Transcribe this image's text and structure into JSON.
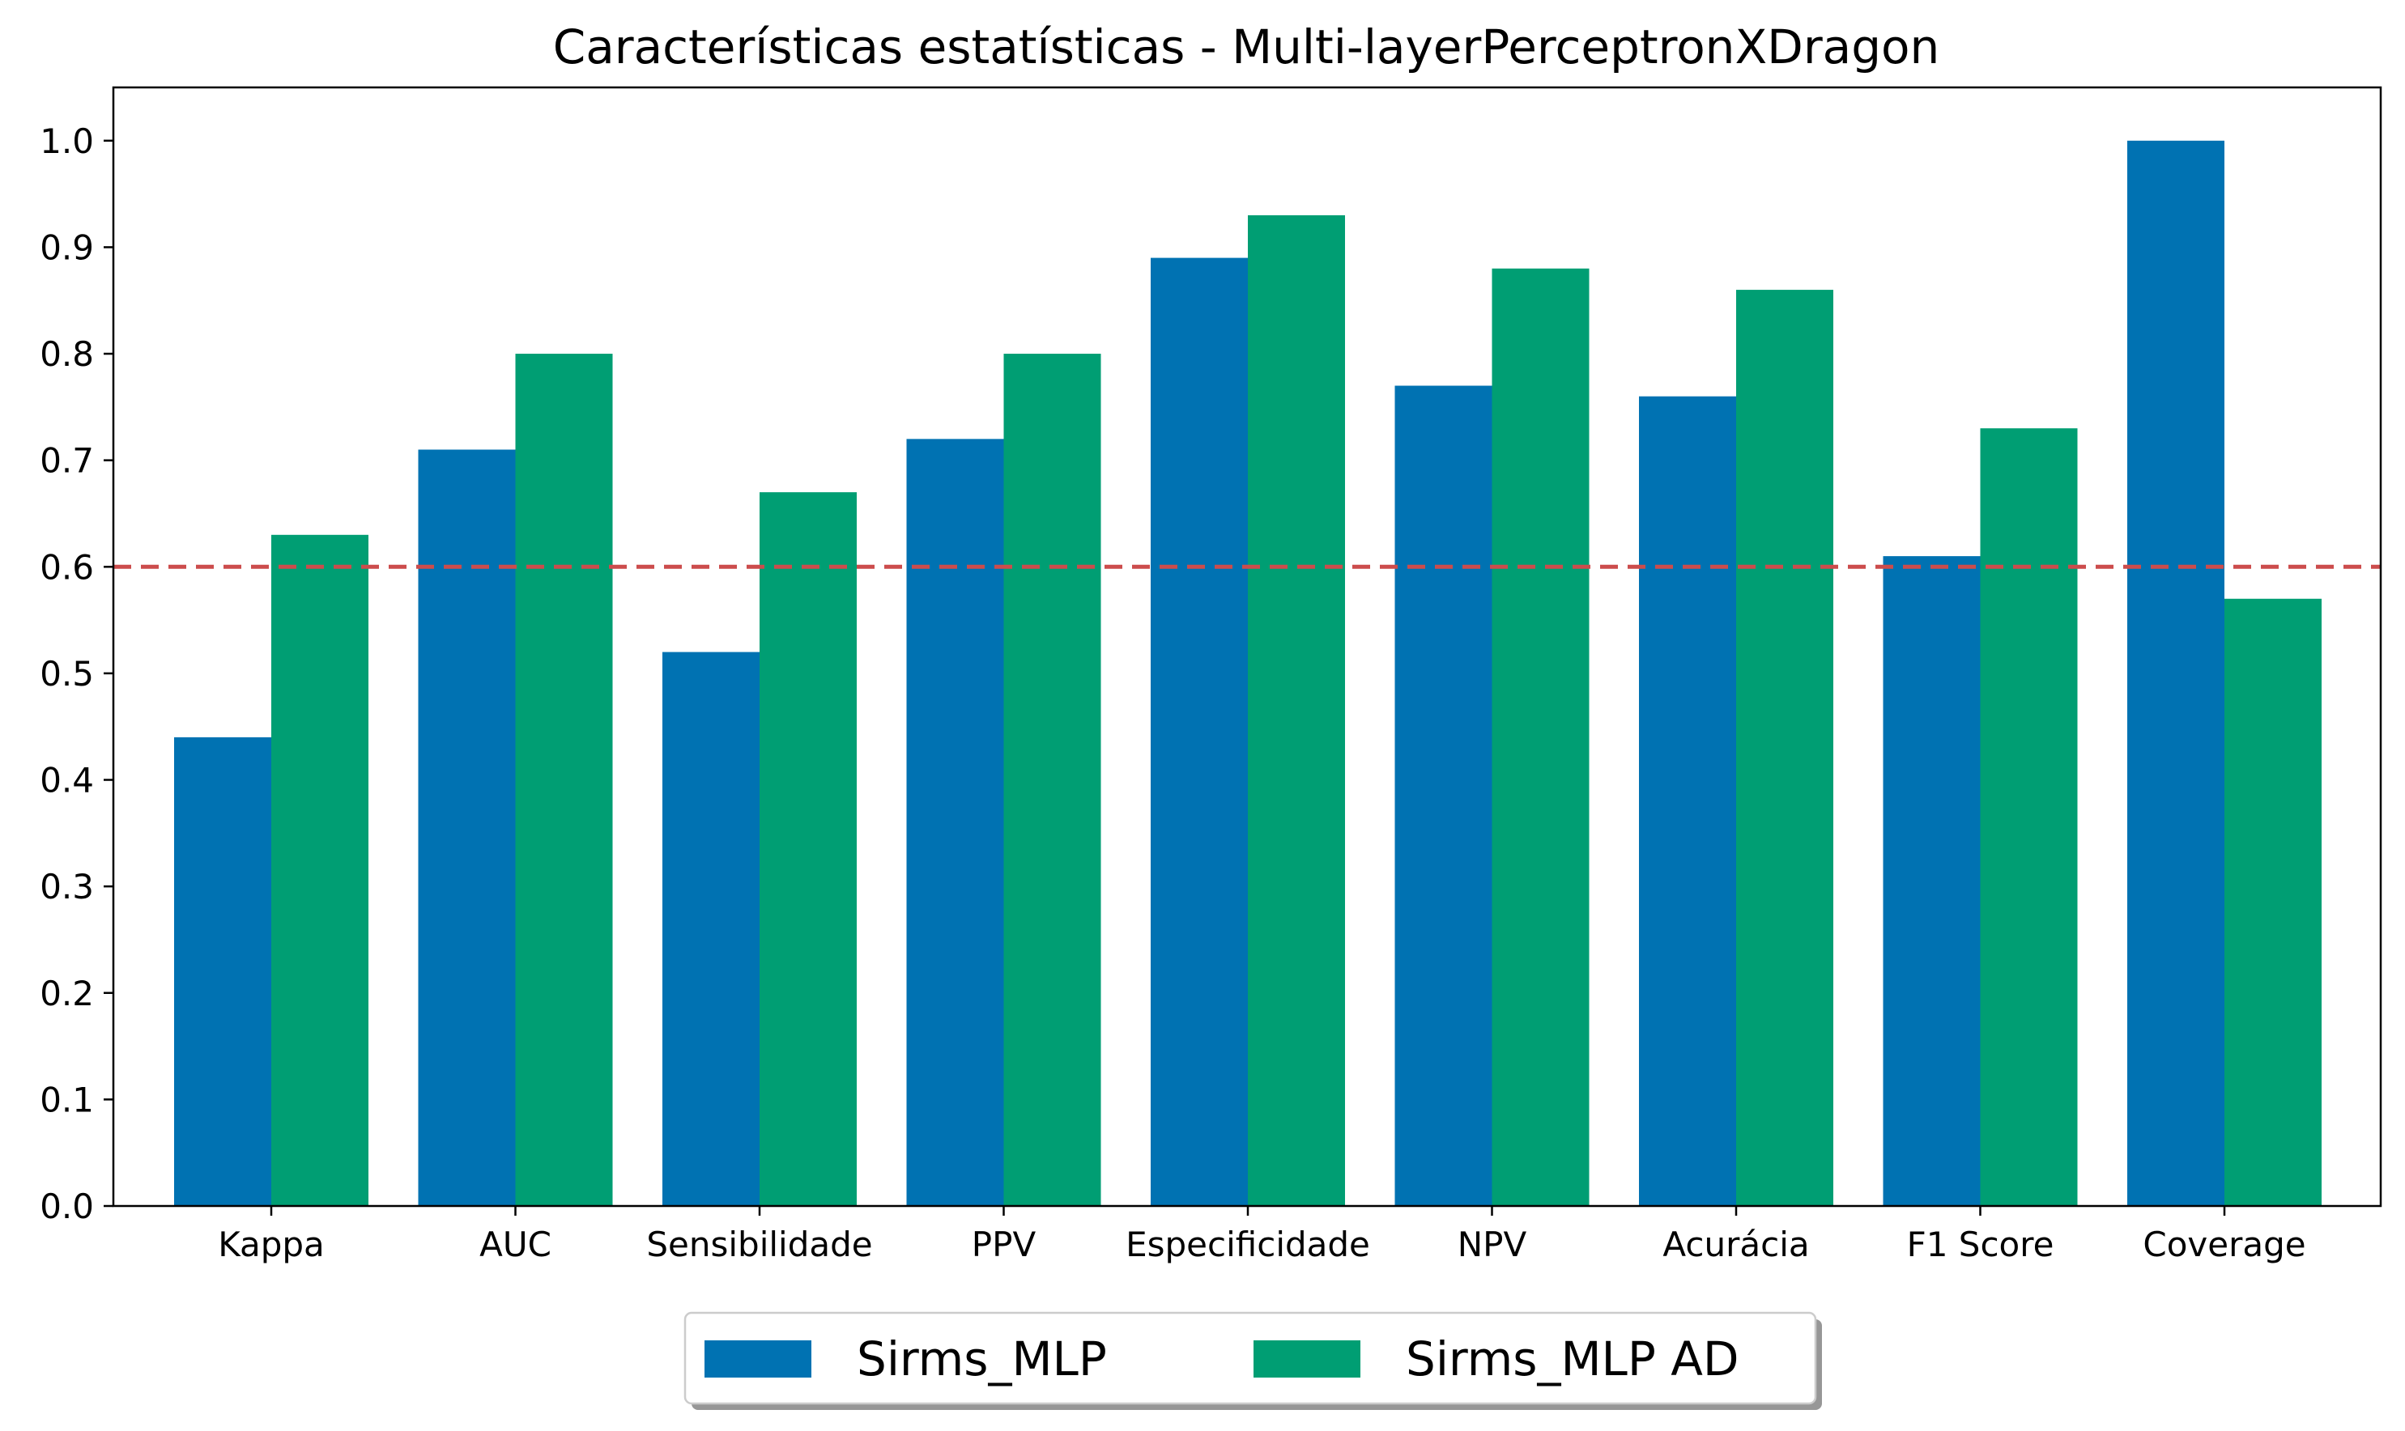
{
  "chart_data": {
    "type": "bar",
    "title": "Características estatísticas - Multi-layerPerceptronXDragon",
    "xlabel": "",
    "ylabel": "",
    "categories": [
      "Kappa",
      "AUC",
      "Sensibilidade",
      "PPV",
      "Especificidade",
      "NPV",
      "Acurácia",
      "F1 Score",
      "Coverage"
    ],
    "series": [
      {
        "name": "Sirms_MLP",
        "color": "#0072B2",
        "values": [
          0.44,
          0.71,
          0.52,
          0.72,
          0.89,
          0.77,
          0.76,
          0.61,
          1.0
        ]
      },
      {
        "name": "Sirms_MLP AD",
        "color": "#009E73",
        "values": [
          0.63,
          0.8,
          0.67,
          0.8,
          0.93,
          0.88,
          0.86,
          0.73,
          0.57
        ]
      }
    ],
    "ylim": [
      0,
      1.05
    ],
    "yticks": [
      "0.0",
      "0.1",
      "0.2",
      "0.3",
      "0.4",
      "0.5",
      "0.6",
      "0.7",
      "0.8",
      "0.9",
      "1.0"
    ],
    "reference_line": {
      "y": 0.6,
      "style": "dashed",
      "color": "#CC4C4C"
    },
    "grid": false,
    "legend_placement": "bottom-center"
  }
}
